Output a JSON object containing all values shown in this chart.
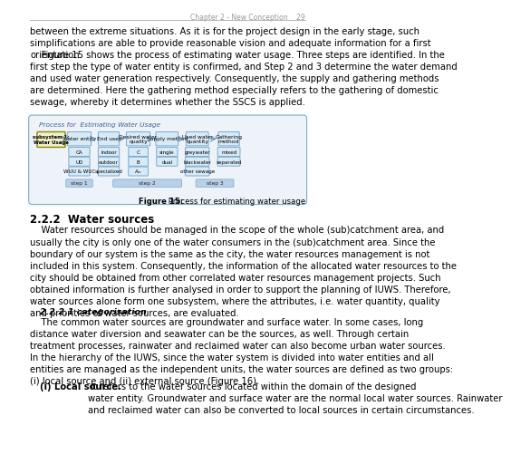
{
  "page_bg": "#ffffff",
  "header_text": "Chapter 2 - New Conception    29",
  "header_line_color": "#aaaaaa",
  "body_text_color": "#000000",
  "body_font_size": 7.2,
  "para1": "between the extreme situations. As it is for the project design in the early stage, such\nsimplifications are able to provide reasonable vision and adequate information for a first\norientation.",
  "para2": "    Figure 15 shows the process of estimating water usage. Three steps are identified. In the\nfirst step the type of water entity is confirmed, and Step 2 and 3 determine the water demand\nand used water generation respectively. Consequently, the supply and gathering methods\nare determined. Here the gathering method especially refers to the gathering of domestic\nsewage, whereby it determines whether the SSCS is applied.",
  "diagram_title": "Process for  Estimating Water Usage",
  "diagram_bg": "#eef3fa",
  "diagram_border": "#7aaacb",
  "diagram_box_fill": "#d8eaf8",
  "diagram_box_border": "#7aaacb",
  "subsystem_fill": "#eef0c8",
  "subsystem_border": "#888800",
  "step_fill": "#b8d0e8",
  "step_border": "#7aaacb",
  "fig_caption_bold": "Figure 15:",
  "fig_caption_rest": " Process for estimating water usage",
  "section_heading": "2.2.2  Water sources",
  "section_text": "    Water resources should be managed in the scope of the whole (sub)catchment area, and\nusually the city is only one of the water consumers in the (sub)catchment area. Since the\nboundary of our system is the same as the city, the water resources management is not\nincluded in this system. Consequently, the information of the allocated water resources to the\ncity should be obtained from other correlated water resources management projects. Such\nobtained information is further analysed in order to support the planning of IUWS. Therefore,\nwater sources alone form one subsystem, where the attributes, i.e. water quantity, quality\nand priorities of water sources, are evaluated.",
  "subsection_heading": "2.2.2.1 categorisation",
  "subsection_text": "    The common water sources are groundwater and surface water. In some cases, long\ndistance water diversion and seawater can be the sources, as well. Through certain\ntreatment processes, rainwater and reclaimed water can also become urban water sources.\nIn the hierarchy of the IUWS, since the water system is divided into water entities and all\nentities are managed as the independent units, the water sources are defined as two groups:\n(i) local source and (ii) external source (Figure 16).",
  "last_para_bold": "(i) Local source.",
  "last_para_rest": " It refers to the water sources located within the domain of the designed\nwater entity. Groundwater and surface water are the normal local water sources. Rainwater\nand reclaimed water can also be converted to local sources in certain circumstances."
}
